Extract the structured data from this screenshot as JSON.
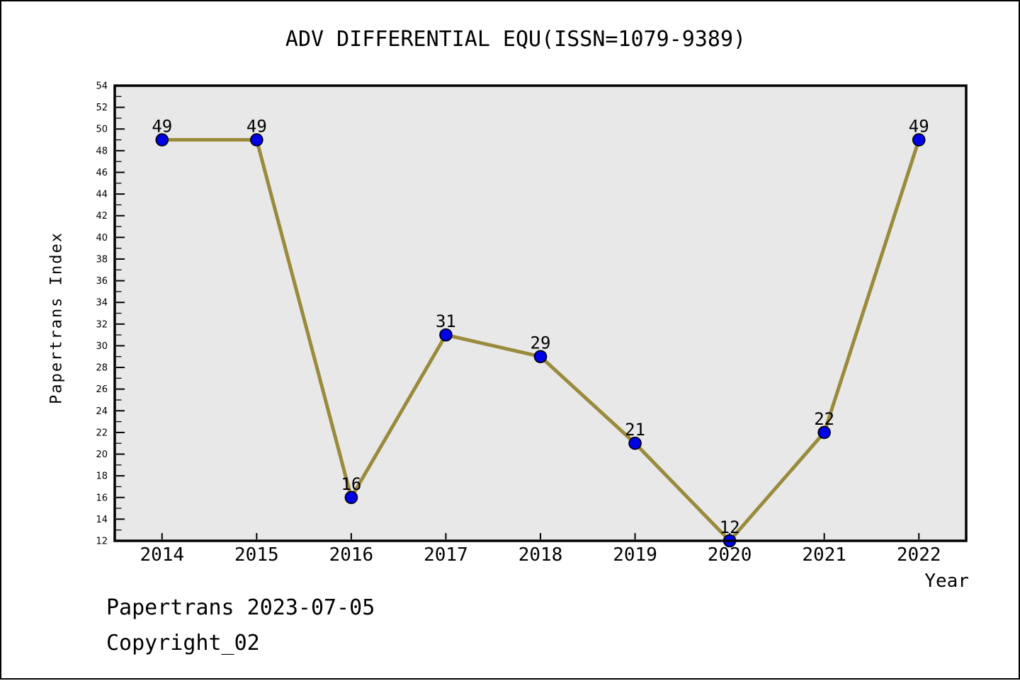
{
  "chart_data": {
    "type": "line",
    "title": "ADV DIFFERENTIAL EQU(ISSN=1079-9389)",
    "xlabel": "Year",
    "ylabel": "Papertrans Index",
    "x": [
      2014,
      2015,
      2016,
      2017,
      2018,
      2019,
      2020,
      2021,
      2022
    ],
    "values": [
      49,
      49,
      16,
      31,
      29,
      21,
      12,
      22,
      49
    ],
    "xlim": [
      2013.5,
      2022.5
    ],
    "ylim": [
      12,
      54
    ],
    "y_tick_step": 2,
    "y_minor_tick_step": 1,
    "x_tick_step": 1,
    "grid": false,
    "legend": null,
    "colors": {
      "line": "#9a8a3c",
      "marker_fill": "#0000e6",
      "marker_edge": "#000000",
      "plot_background": "#e8e8e8",
      "axis": "#000000",
      "text": "#000000"
    }
  },
  "footer": {
    "line1": "Papertrans 2023-07-05",
    "line2": "Copyright_02"
  }
}
